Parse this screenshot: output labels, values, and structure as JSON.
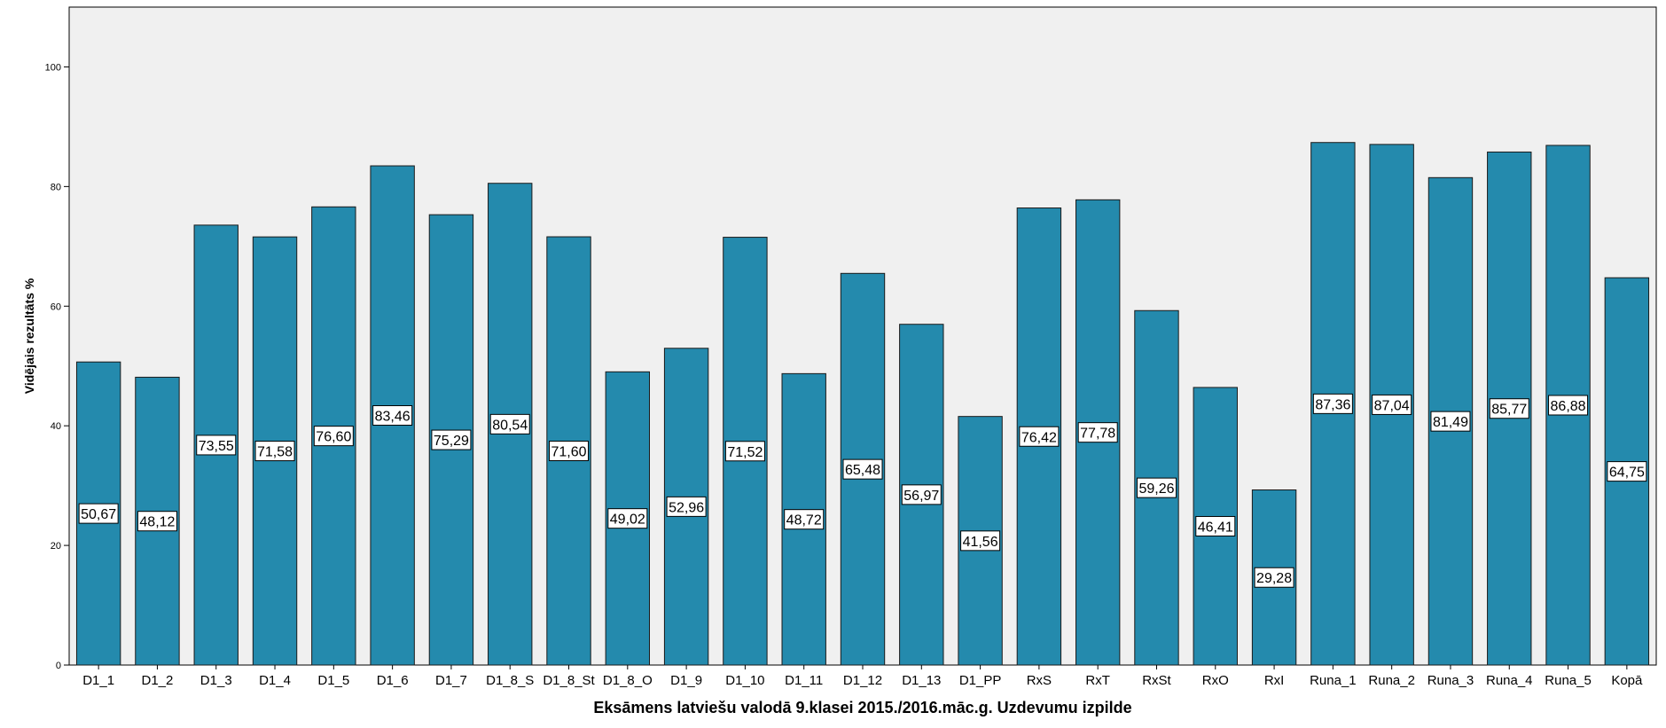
{
  "chart_data": {
    "type": "bar",
    "title": "",
    "xlabel": "Eksāmens latviešu valodā 9.klasei 2015./2016.māc.g. Uzdevumu izpilde",
    "ylabel": "Vidējais rezultāts %",
    "ylim": [
      0,
      110
    ],
    "yticks": [
      0,
      20,
      40,
      60,
      80,
      100
    ],
    "grid": false,
    "legend": "none",
    "categories": [
      "D1_1",
      "D1_2",
      "D1_3",
      "D1_4",
      "D1_5",
      "D1_6",
      "D1_7",
      "D1_8_S",
      "D1_8_St",
      "D1_8_O",
      "D1_9",
      "D1_10",
      "D1_11",
      "D1_12",
      "D1_13",
      "D1_PP",
      "RxS",
      "RxT",
      "RxSt",
      "RxO",
      "RxI",
      "Runa_1",
      "Runa_2",
      "Runa_3",
      "Runa_4",
      "Runa_5",
      "Kopā"
    ],
    "values": [
      50.67,
      48.12,
      73.55,
      71.58,
      76.6,
      83.46,
      75.29,
      80.54,
      71.6,
      49.02,
      52.96,
      71.52,
      48.72,
      65.48,
      56.97,
      41.56,
      76.42,
      77.78,
      59.26,
      46.41,
      29.28,
      87.36,
      87.04,
      81.49,
      85.77,
      86.88,
      64.75
    ],
    "data_labels": [
      "50,67",
      "48,12",
      "73,55",
      "71,58",
      "76,60",
      "83,46",
      "75,29",
      "80,54",
      "71,60",
      "49,02",
      "52,96",
      "71,52",
      "48,72",
      "65,48",
      "56,97",
      "41,56",
      "76,42",
      "77,78",
      "59,26",
      "46,41",
      "29,28",
      "87,36",
      "87,04",
      "81,49",
      "85,77",
      "86,88",
      "64,75"
    ],
    "colors": {
      "bar": "#248aad",
      "plot_background": "#f0f0f0",
      "label_background": "#ffffff"
    }
  }
}
